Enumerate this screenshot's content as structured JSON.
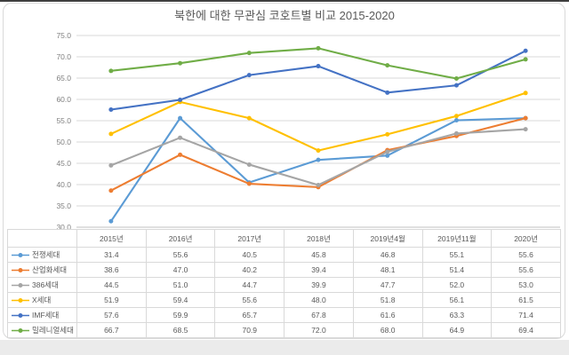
{
  "title": "북한에 대한 무관심 코호트별 비교 2015-2020",
  "chart_data": {
    "type": "line",
    "title": "북한에 대한 무관심 코호트별 비교 2015-2020",
    "categories": [
      "2015년",
      "2016년",
      "2017년",
      "2018년",
      "2019년4월",
      "2019년11월",
      "2020년"
    ],
    "series": [
      {
        "name": "전쟁세대",
        "color": "#5B9BD5",
        "values": [
          31.4,
          55.6,
          40.5,
          45.8,
          46.8,
          55.1,
          55.6
        ]
      },
      {
        "name": "산업화세대",
        "color": "#ED7D31",
        "values": [
          38.6,
          47.0,
          40.2,
          39.4,
          48.1,
          51.4,
          55.6
        ]
      },
      {
        "name": "386세대",
        "color": "#A5A5A5",
        "values": [
          44.5,
          51.0,
          44.7,
          39.9,
          47.7,
          52.0,
          53.0
        ]
      },
      {
        "name": "X세대",
        "color": "#FFC000",
        "values": [
          51.9,
          59.4,
          55.6,
          48.0,
          51.8,
          56.1,
          61.5
        ]
      },
      {
        "name": "IMF세대",
        "color": "#4472C4",
        "values": [
          57.6,
          59.9,
          65.7,
          67.8,
          61.6,
          63.3,
          71.4
        ]
      },
      {
        "name": "밀레니얼세대",
        "color": "#70AD47",
        "values": [
          66.7,
          68.5,
          70.9,
          72.0,
          68.0,
          64.9,
          69.4
        ]
      }
    ],
    "xlabel": "",
    "ylabel": "",
    "ylim": [
      30,
      75
    ],
    "ytick_step": 5,
    "ytick_format": "0.0",
    "value_format": "0.0",
    "grid": true,
    "legend_position": "data-table-left",
    "colors": {
      "grid": "#dadada",
      "axis": "#c0c0c0",
      "tick_label": "#7f7f7f",
      "table_border": "#d9d9d9",
      "text": "#595959"
    }
  }
}
